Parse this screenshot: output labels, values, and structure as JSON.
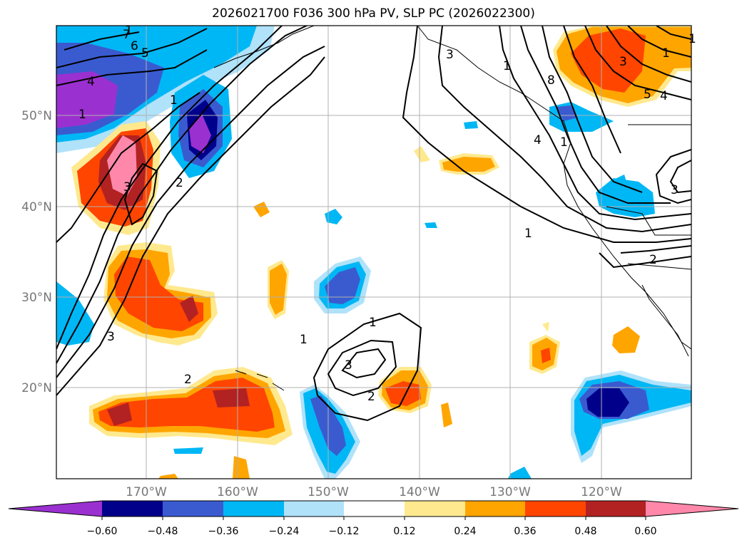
{
  "title": "2026021700 F036 300 hPa PV, SLP PC (2026022300)",
  "map": {
    "lat_labels": [
      "50°N",
      "40°N",
      "30°N",
      "20°N"
    ],
    "lon_labels": [
      "170°W",
      "160°W",
      "150°W",
      "140°W",
      "130°W",
      "120°W"
    ],
    "contour_labels": [
      "1",
      "4",
      "1",
      "1",
      "3",
      "1",
      "3",
      "3",
      "2",
      "1",
      "3",
      "2",
      "1",
      "8",
      "4",
      "1",
      "1",
      "2",
      "3",
      "3",
      "5",
      "4",
      "1",
      "6",
      "5",
      "7",
      "1",
      "2"
    ]
  },
  "colorbar": {
    "ticks": [
      "−0.60",
      "−0.48",
      "−0.36",
      "−0.24",
      "−0.12",
      "0.12",
      "0.24",
      "0.36",
      "0.48",
      "0.60"
    ],
    "colors": {
      "neg_extend": "#9b30d0",
      "neg_060": "#00008b",
      "neg_048": "#3a5bd0",
      "neg_036": "#00b7f5",
      "neg_024": "#b0e2fa",
      "zero": "#ffffff",
      "pos_012": "#ffe98f",
      "pos_024": "#ffa500",
      "pos_036": "#ff4500",
      "pos_048": "#b22222",
      "pos_extend": "#ff88aa"
    }
  }
}
